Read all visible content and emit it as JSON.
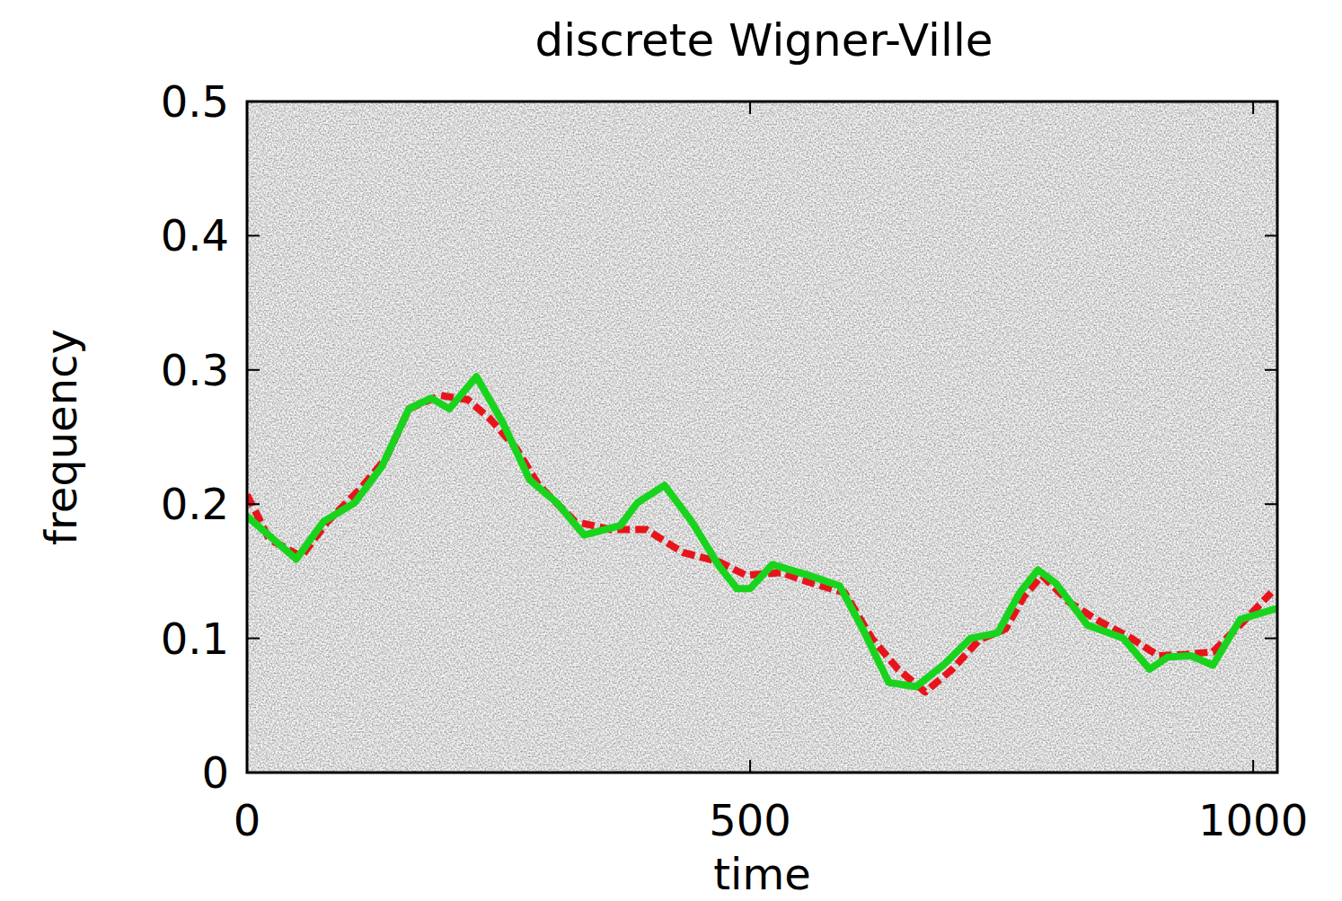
{
  "chart_data": {
    "type": "line",
    "title": "discrete Wigner-Ville",
    "x_label": "time",
    "y_label": "frequency",
    "xlim": [
      0,
      1024
    ],
    "ylim": [
      0,
      0.5
    ],
    "xticks": [
      0,
      500,
      1000
    ],
    "yticks": [
      0,
      0.1,
      0.2,
      0.3,
      0.4,
      0.5
    ],
    "grid": false,
    "series": [
      {
        "color": "#e8141c",
        "line_style": "dashed",
        "x": [
          0,
          22,
          54,
          80,
          112,
          138,
          161,
          192,
          219,
          241,
          268,
          290,
          326,
          362,
          397,
          433,
          469,
          496,
          531,
          558,
          594,
          621,
          647,
          674,
          701,
          728,
          754,
          772,
          790,
          817,
          844,
          879,
          906,
          933,
          960,
          987,
          1018
        ],
        "values": [
          0.207,
          0.174,
          0.161,
          0.187,
          0.211,
          0.234,
          0.271,
          0.281,
          0.278,
          0.264,
          0.241,
          0.214,
          0.187,
          0.181,
          0.181,
          0.164,
          0.157,
          0.147,
          0.149,
          0.142,
          0.134,
          0.1,
          0.077,
          0.06,
          0.077,
          0.099,
          0.107,
          0.131,
          0.147,
          0.127,
          0.114,
          0.1,
          0.087,
          0.088,
          0.09,
          0.11,
          0.134
        ]
      },
      {
        "color": "#18d41c",
        "line_style": "solid",
        "x": [
          0,
          49,
          76,
          107,
          134,
          161,
          183,
          201,
          228,
          254,
          281,
          308,
          335,
          371,
          388,
          415,
          442,
          469,
          487,
          500,
          522,
          558,
          589,
          612,
          638,
          665,
          692,
          719,
          746,
          768,
          786,
          804,
          835,
          871,
          897,
          915,
          938,
          960,
          987,
          1022
        ],
        "values": [
          0.191,
          0.159,
          0.187,
          0.201,
          0.228,
          0.271,
          0.279,
          0.271,
          0.295,
          0.261,
          0.218,
          0.201,
          0.177,
          0.184,
          0.201,
          0.214,
          0.187,
          0.154,
          0.137,
          0.137,
          0.155,
          0.147,
          0.139,
          0.107,
          0.067,
          0.064,
          0.08,
          0.1,
          0.104,
          0.134,
          0.151,
          0.141,
          0.11,
          0.1,
          0.077,
          0.086,
          0.087,
          0.08,
          0.114,
          0.122
        ]
      }
    ]
  }
}
